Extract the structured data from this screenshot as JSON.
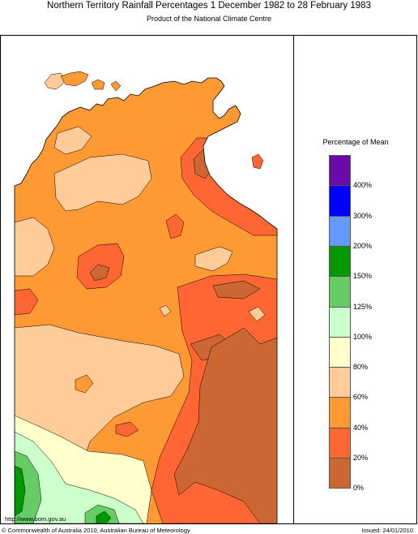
{
  "header": {
    "title": "Northern Territory Rainfall Percentages 1 December 1982 to 28 February 1983",
    "subtitle": "Product of the National Climate Centre"
  },
  "legend": {
    "title": "Percentage of Mean",
    "bands": [
      {
        "color": "#6a0aab"
      },
      {
        "color": "#0000ff"
      },
      {
        "color": "#6699ff"
      },
      {
        "color": "#009900"
      },
      {
        "color": "#66cc66"
      },
      {
        "color": "#ccffcc"
      },
      {
        "color": "#ffffcc"
      },
      {
        "color": "#ffcc99"
      },
      {
        "color": "#ff9933"
      },
      {
        "color": "#ff6633"
      },
      {
        "color": "#cc6633"
      }
    ],
    "labels": [
      "400%",
      "300%",
      "200%",
      "150%",
      "125%",
      "100%",
      "80%",
      "60%",
      "40%",
      "20%",
      "0%"
    ]
  },
  "colors": {
    "lt20": "#cc6633",
    "p20_40": "#ff6633",
    "p40_60": "#ff9933",
    "p60_80": "#ffcc99",
    "p80_100": "#ffffcc",
    "p100_125": "#ccffcc",
    "p125_150": "#66cc66",
    "p150_200": "#009900",
    "ocean": "#ffffff"
  },
  "footer": {
    "url": "http://www.bom.gov.au",
    "copyright": "© Commonwealth of Australia 2010, Australian Bureau of Meteorology",
    "issued": "Issued: 24/01/2010"
  }
}
